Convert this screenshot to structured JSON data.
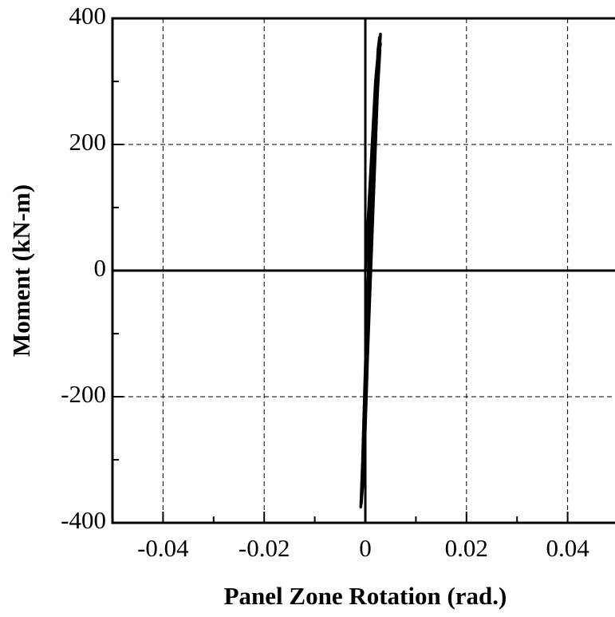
{
  "chart_data": {
    "type": "line",
    "xlabel": "Panel Zone Rotation (rad.)",
    "ylabel": "Moment (kN-m)",
    "xlim": [
      -0.05,
      0.05
    ],
    "ylim": [
      -400,
      400
    ],
    "xticks": [
      -0.04,
      -0.02,
      0,
      0.02,
      0.04
    ],
    "yticks": [
      -400,
      -200,
      0,
      200,
      400
    ],
    "xminorticks": [
      -0.03,
      -0.01,
      0.01,
      0.03
    ],
    "yminorticks": [
      -300,
      -100,
      100,
      300
    ],
    "grid": true,
    "series": [
      {
        "color": "#000000",
        "x": [
          0,
          0.001,
          0.002,
          0.0028,
          0.0025,
          0.001,
          0,
          -0.0008,
          -0.0005,
          0.0005,
          0.0018,
          0.003,
          0.0022,
          0.0008,
          -0.0003,
          -0.0009,
          -0.0002,
          0.001,
          0.0025,
          0.003,
          0.0027,
          0.0012,
          -0.0001,
          -0.0007,
          -0.0004,
          0.0009,
          0.0024,
          0.0029
        ],
        "values": [
          0,
          150,
          300,
          370,
          350,
          100,
          -150,
          -370,
          -340,
          -100,
          200,
          375,
          300,
          50,
          -250,
          -375,
          -300,
          0,
          330,
          360,
          340,
          120,
          -180,
          -360,
          -320,
          -40,
          280,
          350
        ]
      }
    ]
  }
}
